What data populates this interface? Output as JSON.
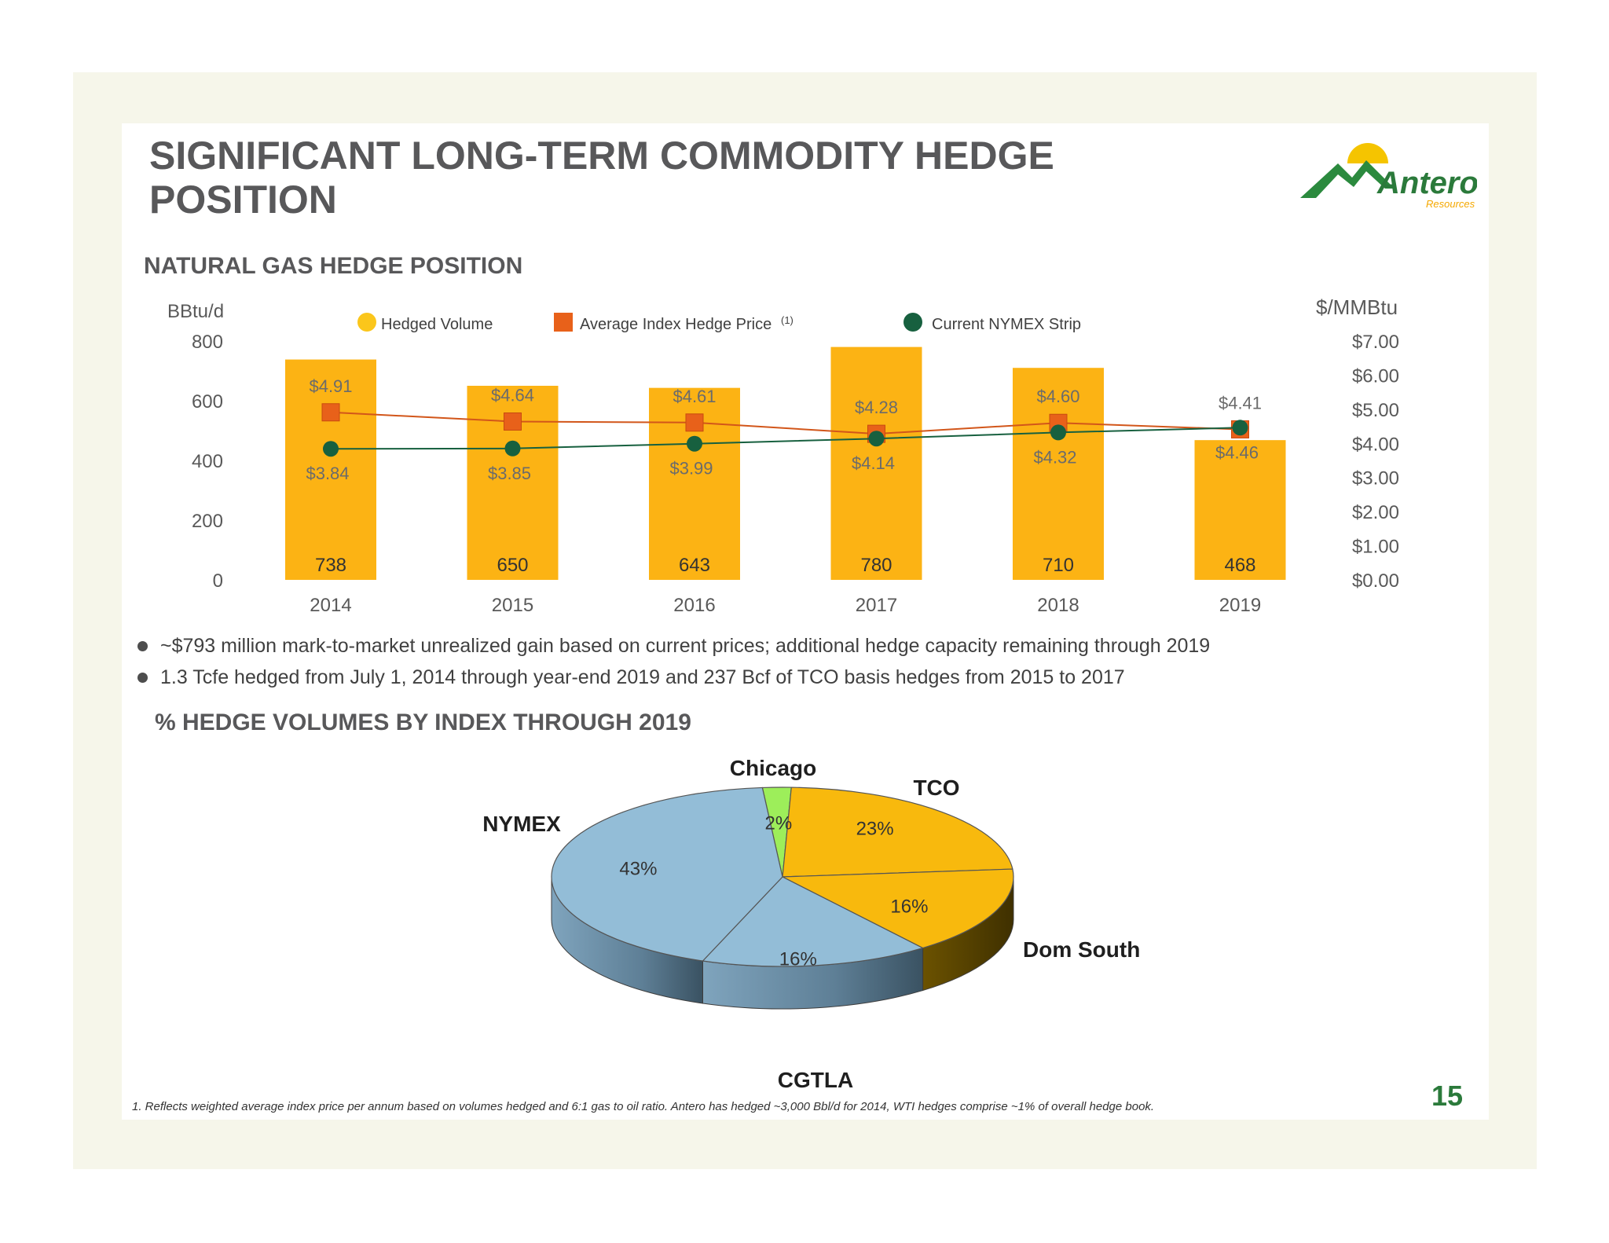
{
  "page": {
    "title": "SIGNIFICANT LONG-TERM COMMODITY HEDGE POSITION",
    "logo_text": "Antero",
    "logo_subtext": "Resources",
    "page_number": "15"
  },
  "section1": {
    "heading": "NATURAL GAS HEDGE POSITION"
  },
  "bullets": [
    "~$793 million mark-to-market unrealized gain based on current prices; additional hedge capacity remaining through 2019",
    "1.3 Tcfe hedged from July 1, 2014 through year-end 2019  and 237 Bcf of TCO basis hedges from 2015 to 2017"
  ],
  "section2": {
    "heading": "% HEDGE VOLUMES BY INDEX THROUGH 2019"
  },
  "footnote": "1.   Reflects weighted average index price per annum based on volumes hedged and 6:1 gas to oil ratio.   Antero has hedged ~3,000 Bbl/d for 2014, WTI hedges comprise ~1% of overall hedge book.",
  "chart_data": [
    {
      "type": "bar",
      "categories": [
        "2014",
        "2015",
        "2016",
        "2017",
        "2018",
        "2019"
      ],
      "left_axis": {
        "label": "BBtu/d",
        "ylim": [
          0,
          800
        ],
        "ticks": [
          "0",
          "200",
          "400",
          "600",
          "800"
        ]
      },
      "right_axis": {
        "label": "$/MMBtu",
        "ylim": [
          0,
          7
        ],
        "ticks": [
          "$0.00",
          "$1.00",
          "$2.00",
          "$3.00",
          "$4.00",
          "$5.00",
          "$6.00",
          "$7.00"
        ]
      },
      "legend": {
        "hedged_volume": "Hedged Volume",
        "avg_price": "Average Index Hedge Price",
        "avg_price_sup": "(1)",
        "nymex": "Current NYMEX Strip"
      },
      "series": [
        {
          "name": "Hedged Volume",
          "axis": "left",
          "values": [
            738,
            650,
            643,
            780,
            710,
            468
          ],
          "labels": [
            "738",
            "650",
            "643",
            "780",
            "710",
            "468"
          ]
        },
        {
          "name": "Average Index Hedge Price",
          "axis": "right",
          "values": [
            4.91,
            4.64,
            4.61,
            4.28,
            4.6,
            4.41
          ],
          "labels": [
            "$4.91",
            "$4.64",
            "$4.61",
            "$4.28",
            "$4.60",
            "$4.41"
          ]
        },
        {
          "name": "Current NYMEX Strip",
          "axis": "right",
          "values": [
            3.84,
            3.85,
            3.99,
            4.14,
            4.32,
            4.46
          ],
          "labels": [
            "$3.84",
            "$3.85",
            "$3.99",
            "$4.14",
            "$4.32",
            "$4.46"
          ]
        }
      ],
      "colors": {
        "bar": "#fcb314",
        "avg_price": "#e8611a",
        "avg_line": "#d2561a",
        "nymex": "#17603f"
      }
    },
    {
      "type": "pie",
      "slices": [
        {
          "name": "Chicago",
          "value": 2,
          "label": "2%",
          "color": "#9dee5a"
        },
        {
          "name": "TCO",
          "value": 23,
          "label": "23%",
          "color": "#f8b90d"
        },
        {
          "name": "Dom South",
          "value": 16,
          "label": "16%",
          "color": "#f8b90d"
        },
        {
          "name": "CGTLA",
          "value": 16,
          "label": "16%",
          "color": "#93bdd7"
        },
        {
          "name": "NYMEX",
          "value": 43,
          "label": "43%",
          "color": "#93bdd7"
        }
      ]
    }
  ]
}
